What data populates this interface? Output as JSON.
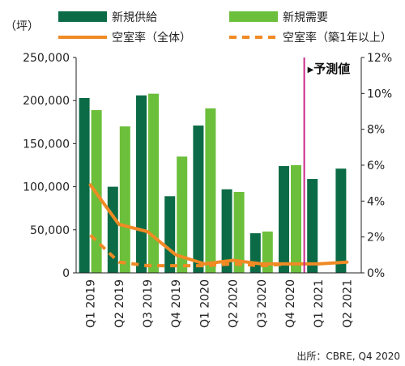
{
  "chart_data": {
    "type": "bar",
    "categories": [
      "Q1 2019",
      "Q2 2019",
      "Q3 2019",
      "Q4 2019",
      "Q1 2020",
      "Q2 2020",
      "Q3 2020",
      "Q4 2020",
      "Q1 2021",
      "Q2 2021"
    ],
    "series": [
      {
        "name": "新規供給",
        "kind": "bar",
        "axis": "left",
        "color": "#0b6b46",
        "values": [
          203000,
          100000,
          206000,
          89000,
          171000,
          97000,
          46000,
          124000,
          109000,
          121000
        ]
      },
      {
        "name": "新規需要",
        "kind": "bar",
        "axis": "left",
        "color": "#6cbf3b",
        "values": [
          189000,
          170000,
          208000,
          135000,
          191000,
          94000,
          48000,
          125000,
          null,
          null
        ]
      },
      {
        "name": "空室率（全体）",
        "kind": "line",
        "axis": "right",
        "color": "#f08a24",
        "dash": "solid",
        "values": [
          4.9,
          2.7,
          2.3,
          1.0,
          0.5,
          0.7,
          0.5,
          0.5,
          0.5,
          0.6
        ]
      },
      {
        "name": "空室率（築1年以上）",
        "kind": "line",
        "axis": "right",
        "color": "#f08a24",
        "dash": "dashed",
        "values": [
          2.1,
          0.6,
          0.4,
          0.4,
          0.4,
          0.5,
          0.4,
          0.5,
          null,
          null
        ]
      }
    ],
    "left_axis": {
      "unit": "（坪）",
      "ylim": [
        0,
        250000
      ],
      "ticks": [
        "0",
        "50,000",
        "100,000",
        "150,000",
        "200,000",
        "250,000"
      ],
      "tick_values": [
        0,
        50000,
        100000,
        150000,
        200000,
        250000
      ]
    },
    "right_axis": {
      "ylim": [
        0,
        12
      ],
      "ticks": [
        "0%",
        "2%",
        "4%",
        "6%",
        "8%",
        "10%",
        "12%"
      ],
      "tick_values": [
        0,
        2,
        4,
        6,
        8,
        10,
        12
      ]
    },
    "forecast": {
      "label": "予測値",
      "marker": "▶",
      "after_category": "Q4 2020",
      "line_color": "#c8288a"
    },
    "legend_position": "top",
    "grid": false,
    "source": "出所：CBRE, Q4 2020"
  }
}
